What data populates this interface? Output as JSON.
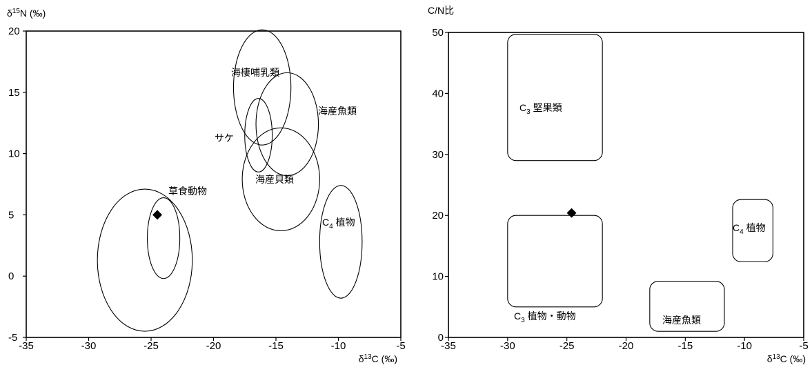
{
  "chart_data": [
    {
      "type": "scatter",
      "title": "",
      "xlabel": "δ13C (‰)",
      "ylabel": "δ15N (‰)",
      "xlim": [
        -35,
        -5
      ],
      "ylim": [
        -5,
        20
      ],
      "xticks": [
        "-35",
        "-30",
        "-25",
        "-20",
        "-15",
        "-10",
        "-5"
      ],
      "yticks": [
        "-5",
        "0",
        "5",
        "10",
        "15",
        "20"
      ],
      "grid": false,
      "regions": [
        {
          "label": "海棲哺乳類",
          "shape": "ellipse",
          "cx": -16.1,
          "cy": 15.4,
          "rx": 2.3,
          "ry": 4.7
        },
        {
          "label": "海産魚類",
          "shape": "ellipse",
          "cx": -14.1,
          "cy": 12.4,
          "rx": 2.5,
          "ry": 4.2
        },
        {
          "label": "サケ",
          "shape": "ellipse",
          "cx": -16.4,
          "cy": 11.5,
          "rx": 1.1,
          "ry": 3.0
        },
        {
          "label": "海産貝類",
          "shape": "ellipse",
          "cx": -14.6,
          "cy": 7.9,
          "rx": 3.1,
          "ry": 4.2
        },
        {
          "label": "草食動物",
          "shape": "ellipse",
          "cx": -24.0,
          "cy": 3.1,
          "rx": 1.3,
          "ry": 3.3
        },
        {
          "label": "",
          "shape": "ellipse",
          "cx": -25.5,
          "cy": 1.3,
          "rx": 3.8,
          "ry": 5.8
        },
        {
          "label": "C4 植物",
          "label_main": "C",
          "label_sub": "4",
          "label_rest": " 植物",
          "shape": "ellipse",
          "cx": -9.8,
          "cy": 2.8,
          "rx": 1.7,
          "ry": 4.6
        }
      ],
      "points": [
        {
          "x": -24.5,
          "y": 5.0,
          "marker": "diamond"
        }
      ]
    },
    {
      "type": "scatter",
      "title": "",
      "xlabel": "δ13C (‰)",
      "ylabel": "C/N比",
      "xlim": [
        -35,
        -5
      ],
      "ylim": [
        0,
        50
      ],
      "xticks": [
        "-35",
        "-30",
        "-25",
        "-20",
        "-15",
        "-10",
        "-5"
      ],
      "yticks": [
        "0",
        "10",
        "20",
        "30",
        "40",
        "50"
      ],
      "grid": false,
      "regions": [
        {
          "label": "C3 堅果類",
          "label_main": "C",
          "label_sub": "3",
          "label_rest": " 堅果類",
          "shape": "rect",
          "x0": -30.0,
          "x1": -22.0,
          "y0": 29.0,
          "y1": 49.7
        },
        {
          "label": "C3 植物・動物",
          "label_main": "C",
          "label_sub": "3",
          "label_rest": " 植物・動物",
          "shape": "rect",
          "x0": -30.0,
          "x1": -22.0,
          "y0": 5.0,
          "y1": 20.0
        },
        {
          "label": "海産魚類",
          "shape": "rect",
          "x0": -18.0,
          "x1": -11.7,
          "y0": 1.0,
          "y1": 9.2
        },
        {
          "label": "C4 植物",
          "label_main": "C",
          "label_sub": "4",
          "label_rest": " 植物",
          "shape": "rect",
          "x0": -11.0,
          "x1": -7.6,
          "y0": 12.4,
          "y1": 22.6
        }
      ],
      "points": [
        {
          "x": -24.6,
          "y": 20.4,
          "marker": "diamond"
        }
      ]
    }
  ]
}
